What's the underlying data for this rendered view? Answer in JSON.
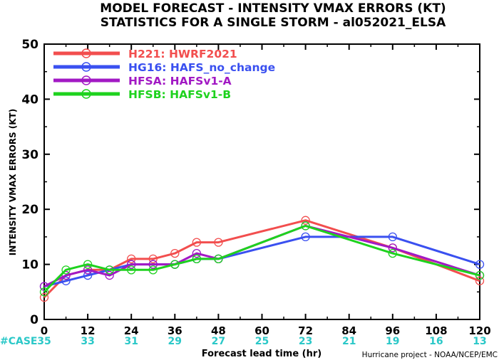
{
  "chart_data": {
    "type": "line",
    "title": "MODEL FORECAST - INTENSITY VMAX ERRORS (KT)",
    "subtitle": "STATISTICS FOR A SINGLE STORM - al052021_ELSA",
    "xlabel": "Forecast lead time (hr)",
    "ylabel": "INTENSITY VMAX ERRORS (KT)",
    "xlim": [
      0,
      120
    ],
    "ylim": [
      0,
      50
    ],
    "x_ticks": [
      0,
      12,
      24,
      36,
      48,
      60,
      72,
      84,
      96,
      108,
      120
    ],
    "y_ticks": [
      0,
      10,
      20,
      30,
      40,
      50
    ],
    "grid": false,
    "legend_position": "top-left",
    "case_label": "#CASE",
    "case_counts": [
      {
        "x": 0,
        "n": "35"
      },
      {
        "x": 12,
        "n": "33"
      },
      {
        "x": 24,
        "n": "31"
      },
      {
        "x": 36,
        "n": "29"
      },
      {
        "x": 48,
        "n": "27"
      },
      {
        "x": 60,
        "n": "25"
      },
      {
        "x": 72,
        "n": "23"
      },
      {
        "x": 84,
        "n": "21"
      },
      {
        "x": 96,
        "n": "19"
      },
      {
        "x": 108,
        "n": "16"
      },
      {
        "x": 120,
        "n": "13"
      }
    ],
    "credit": "Hurricane project - NOAA/NCEP/EMC",
    "series": [
      {
        "id": "H221",
        "name": "HWRF2021",
        "color": "#f24e4e",
        "points": [
          [
            0,
            4
          ],
          [
            6,
            8
          ],
          [
            12,
            9
          ],
          [
            18,
            9
          ],
          [
            24,
            11
          ],
          [
            30,
            11
          ],
          [
            36,
            12
          ],
          [
            42,
            14
          ],
          [
            48,
            14
          ],
          [
            72,
            18
          ],
          [
            96,
            13
          ],
          [
            120,
            7
          ]
        ]
      },
      {
        "id": "HG16",
        "name": "HAFS_no_change",
        "color": "#3a50f0",
        "points": [
          [
            0,
            6
          ],
          [
            6,
            7
          ],
          [
            12,
            8
          ],
          [
            18,
            9
          ],
          [
            24,
            10
          ],
          [
            30,
            10
          ],
          [
            36,
            10
          ],
          [
            42,
            11
          ],
          [
            48,
            11
          ],
          [
            72,
            15
          ],
          [
            96,
            15
          ],
          [
            120,
            10
          ]
        ]
      },
      {
        "id": "HFSA",
        "name": "HAFSv1-A",
        "color": "#a219c4",
        "points": [
          [
            0,
            6
          ],
          [
            6,
            8
          ],
          [
            12,
            9
          ],
          [
            18,
            8
          ],
          [
            24,
            10
          ],
          [
            30,
            10
          ],
          [
            36,
            10
          ],
          [
            42,
            12
          ],
          [
            48,
            11
          ],
          [
            72,
            17
          ],
          [
            96,
            13
          ],
          [
            120,
            8
          ]
        ]
      },
      {
        "id": "HFSB",
        "name": "HAFSv1-B",
        "color": "#1ed21e",
        "points": [
          [
            0,
            5
          ],
          [
            6,
            9
          ],
          [
            12,
            10
          ],
          [
            18,
            9
          ],
          [
            24,
            9
          ],
          [
            30,
            9
          ],
          [
            36,
            10
          ],
          [
            42,
            11
          ],
          [
            48,
            11
          ],
          [
            72,
            17
          ],
          [
            96,
            12
          ],
          [
            120,
            8
          ]
        ]
      }
    ]
  }
}
